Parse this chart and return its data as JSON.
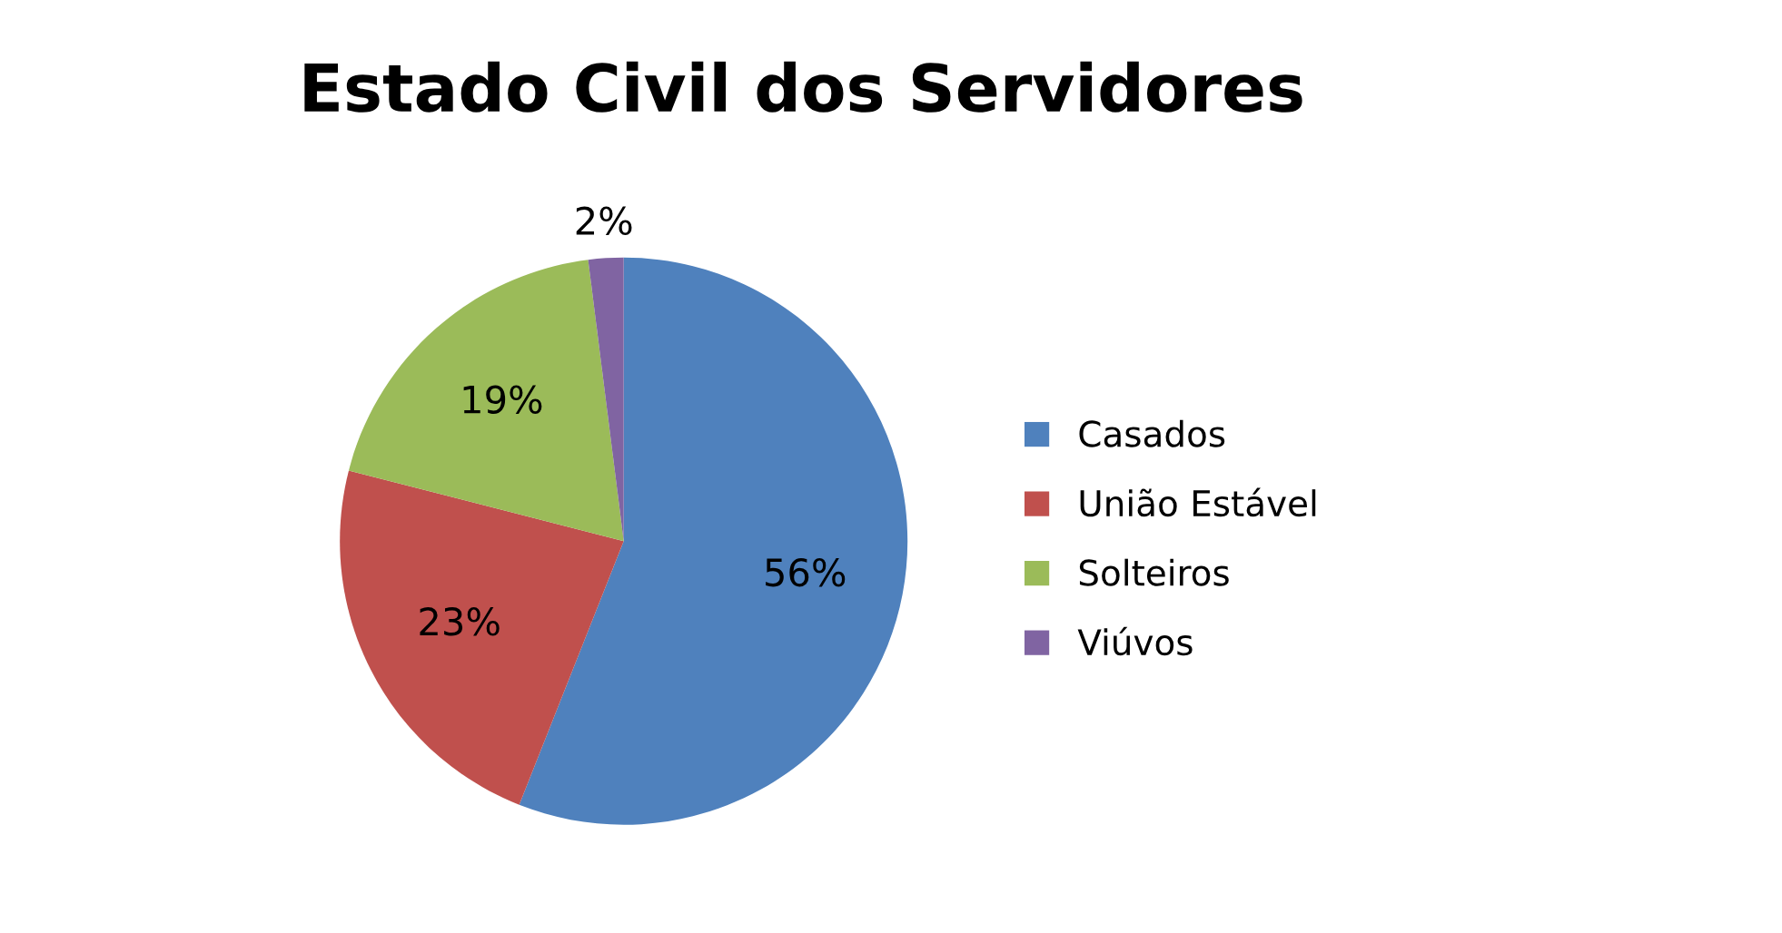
{
  "chart_data": {
    "type": "pie",
    "title": "Estado Civil dos Servidores",
    "categories": [
      "Casados",
      "União Estável",
      "Solteiros",
      "Viúvos"
    ],
    "values": [
      56,
      23,
      19,
      2
    ],
    "colors": [
      "#4f81bd",
      "#c0504d",
      "#9bbb59",
      "#8064a2"
    ],
    "value_labels": [
      "56%",
      "23%",
      "19%",
      "2%"
    ],
    "legend": "right"
  }
}
